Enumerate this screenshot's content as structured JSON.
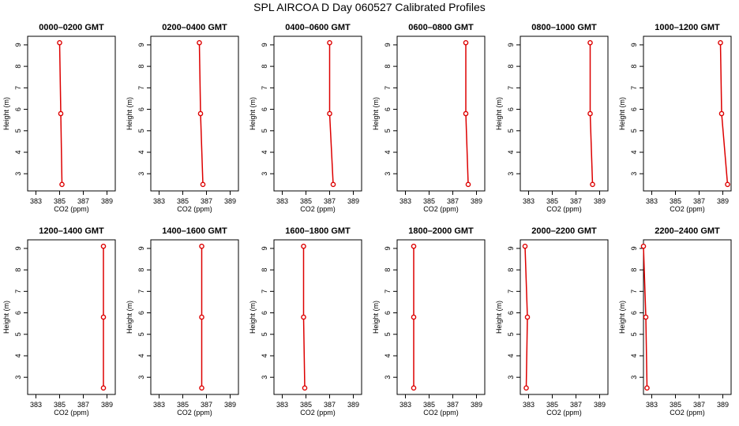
{
  "title": "SPL AIRCOA D  Day 060527  Calibrated Profiles",
  "colors": {
    "series": "#dd0000",
    "axis": "#000000"
  },
  "chart_data": [
    {
      "type": "line",
      "title": "0000–0200 GMT",
      "xlabel": "CO2 (ppm)",
      "ylabel": "Height (m)",
      "xlim": [
        382.3,
        389.7
      ],
      "ylim": [
        2.2,
        9.4
      ],
      "x_ticks": [
        383,
        385,
        387,
        389
      ],
      "y_ticks": [
        3,
        4,
        5,
        6,
        7,
        8,
        9
      ],
      "grid": false,
      "series": [
        {
          "points": [
            {
              "x": 385.2,
              "y": 2.5
            },
            {
              "x": 385.1,
              "y": 5.8
            },
            {
              "x": 385.0,
              "y": 9.1
            }
          ]
        }
      ]
    },
    {
      "type": "line",
      "title": "0200–0400 GMT",
      "xlabel": "CO2 (ppm)",
      "ylabel": "Height (m)",
      "xlim": [
        382.3,
        389.7
      ],
      "ylim": [
        2.2,
        9.4
      ],
      "x_ticks": [
        383,
        385,
        387,
        389
      ],
      "y_ticks": [
        3,
        4,
        5,
        6,
        7,
        8,
        9
      ],
      "grid": false,
      "series": [
        {
          "points": [
            {
              "x": 386.7,
              "y": 2.5
            },
            {
              "x": 386.5,
              "y": 5.8
            },
            {
              "x": 386.4,
              "y": 9.1
            }
          ]
        }
      ]
    },
    {
      "type": "line",
      "title": "0400–0600 GMT",
      "xlabel": "CO2 (ppm)",
      "ylabel": "Height (m)",
      "xlim": [
        382.3,
        389.7
      ],
      "ylim": [
        2.2,
        9.4
      ],
      "x_ticks": [
        383,
        385,
        387,
        389
      ],
      "y_ticks": [
        3,
        4,
        5,
        6,
        7,
        8,
        9
      ],
      "grid": false,
      "series": [
        {
          "points": [
            {
              "x": 387.3,
              "y": 2.5
            },
            {
              "x": 387.0,
              "y": 5.8
            },
            {
              "x": 387.0,
              "y": 9.1
            }
          ]
        }
      ]
    },
    {
      "type": "line",
      "title": "0600–0800 GMT",
      "xlabel": "CO2 (ppm)",
      "ylabel": "Height (m)",
      "xlim": [
        382.3,
        389.7
      ],
      "ylim": [
        2.2,
        9.4
      ],
      "x_ticks": [
        383,
        385,
        387,
        389
      ],
      "y_ticks": [
        3,
        4,
        5,
        6,
        7,
        8,
        9
      ],
      "grid": false,
      "series": [
        {
          "points": [
            {
              "x": 388.3,
              "y": 2.5
            },
            {
              "x": 388.1,
              "y": 5.8
            },
            {
              "x": 388.1,
              "y": 9.1
            }
          ]
        }
      ]
    },
    {
      "type": "line",
      "title": "0800–1000 GMT",
      "xlabel": "CO2 (ppm)",
      "ylabel": "Height (m)",
      "xlim": [
        382.3,
        389.7
      ],
      "ylim": [
        2.2,
        9.4
      ],
      "x_ticks": [
        383,
        385,
        387,
        389
      ],
      "y_ticks": [
        3,
        4,
        5,
        6,
        7,
        8,
        9
      ],
      "grid": false,
      "series": [
        {
          "points": [
            {
              "x": 388.4,
              "y": 2.5
            },
            {
              "x": 388.2,
              "y": 5.8
            },
            {
              "x": 388.2,
              "y": 9.1
            }
          ]
        }
      ]
    },
    {
      "type": "line",
      "title": "1000–1200 GMT",
      "xlabel": "CO2 (ppm)",
      "ylabel": "Height (m)",
      "xlim": [
        382.3,
        389.7
      ],
      "ylim": [
        2.2,
        9.4
      ],
      "x_ticks": [
        383,
        385,
        387,
        389
      ],
      "y_ticks": [
        3,
        4,
        5,
        6,
        7,
        8,
        9
      ],
      "grid": false,
      "series": [
        {
          "points": [
            {
              "x": 389.4,
              "y": 2.5
            },
            {
              "x": 388.9,
              "y": 5.8
            },
            {
              "x": 388.8,
              "y": 9.1
            }
          ]
        }
      ]
    },
    {
      "type": "line",
      "title": "1200–1400 GMT",
      "xlabel": "CO2 (ppm)",
      "ylabel": "Height (m)",
      "xlim": [
        382.3,
        389.7
      ],
      "ylim": [
        2.2,
        9.4
      ],
      "x_ticks": [
        383,
        385,
        387,
        389
      ],
      "y_ticks": [
        3,
        4,
        5,
        6,
        7,
        8,
        9
      ],
      "grid": false,
      "series": [
        {
          "points": [
            {
              "x": 388.7,
              "y": 2.5
            },
            {
              "x": 388.7,
              "y": 5.8
            },
            {
              "x": 388.7,
              "y": 9.1
            }
          ]
        }
      ]
    },
    {
      "type": "line",
      "title": "1400–1600 GMT",
      "xlabel": "CO2 (ppm)",
      "ylabel": "Height (m)",
      "xlim": [
        382.3,
        389.7
      ],
      "ylim": [
        2.2,
        9.4
      ],
      "x_ticks": [
        383,
        385,
        387,
        389
      ],
      "y_ticks": [
        3,
        4,
        5,
        6,
        7,
        8,
        9
      ],
      "grid": false,
      "series": [
        {
          "points": [
            {
              "x": 386.6,
              "y": 2.5
            },
            {
              "x": 386.6,
              "y": 5.8
            },
            {
              "x": 386.6,
              "y": 9.1
            }
          ]
        }
      ]
    },
    {
      "type": "line",
      "title": "1600–1800 GMT",
      "xlabel": "CO2 (ppm)",
      "ylabel": "Height (m)",
      "xlim": [
        382.3,
        389.7
      ],
      "ylim": [
        2.2,
        9.4
      ],
      "x_ticks": [
        383,
        385,
        387,
        389
      ],
      "y_ticks": [
        3,
        4,
        5,
        6,
        7,
        8,
        9
      ],
      "grid": false,
      "series": [
        {
          "points": [
            {
              "x": 384.9,
              "y": 2.5
            },
            {
              "x": 384.8,
              "y": 5.8
            },
            {
              "x": 384.8,
              "y": 9.1
            }
          ]
        }
      ]
    },
    {
      "type": "line",
      "title": "1800–2000 GMT",
      "xlabel": "CO2 (ppm)",
      "ylabel": "Height (m)",
      "xlim": [
        382.3,
        389.7
      ],
      "ylim": [
        2.2,
        9.4
      ],
      "x_ticks": [
        383,
        385,
        387,
        389
      ],
      "y_ticks": [
        3,
        4,
        5,
        6,
        7,
        8,
        9
      ],
      "grid": false,
      "series": [
        {
          "points": [
            {
              "x": 383.7,
              "y": 2.5
            },
            {
              "x": 383.7,
              "y": 5.8
            },
            {
              "x": 383.7,
              "y": 9.1
            }
          ]
        }
      ]
    },
    {
      "type": "line",
      "title": "2000–2200 GMT",
      "xlabel": "CO2 (ppm)",
      "ylabel": "Height (m)",
      "xlim": [
        382.3,
        389.7
      ],
      "ylim": [
        2.2,
        9.4
      ],
      "x_ticks": [
        383,
        385,
        387,
        389
      ],
      "y_ticks": [
        3,
        4,
        5,
        6,
        7,
        8,
        9
      ],
      "grid": false,
      "series": [
        {
          "points": [
            {
              "x": 382.8,
              "y": 2.5
            },
            {
              "x": 382.9,
              "y": 5.8
            },
            {
              "x": 382.7,
              "y": 9.1
            }
          ]
        }
      ]
    },
    {
      "type": "line",
      "title": "2200–2400 GMT",
      "xlabel": "CO2 (ppm)",
      "ylabel": "Height (m)",
      "xlim": [
        382.3,
        389.7
      ],
      "ylim": [
        2.2,
        9.4
      ],
      "x_ticks": [
        383,
        385,
        387,
        389
      ],
      "y_ticks": [
        3,
        4,
        5,
        6,
        7,
        8,
        9
      ],
      "grid": false,
      "series": [
        {
          "points": [
            {
              "x": 382.6,
              "y": 2.5
            },
            {
              "x": 382.5,
              "y": 5.8
            },
            {
              "x": 382.3,
              "y": 9.1
            }
          ]
        }
      ]
    }
  ]
}
